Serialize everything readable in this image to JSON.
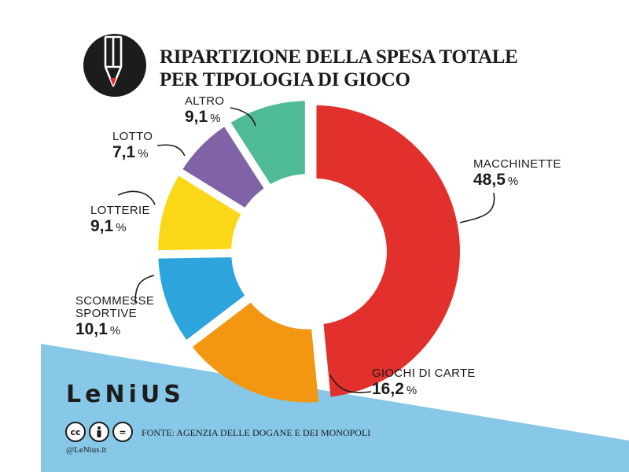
{
  "header": {
    "title_line1": "RIPARTIZIONE DELLA SPESA TOTALE",
    "title_line2": "PER TIPOLOGIA DI GIOCO"
  },
  "chart_data": {
    "type": "pie",
    "variant": "donut",
    "title": "RIPARTIZIONE DELLA SPESA TOTALE PER TIPOLOGIA DI GIOCO",
    "unit": "%",
    "slices": [
      {
        "label": "MACCHINETTE",
        "value": 48.5,
        "display": "48,5",
        "color": "#e2302d"
      },
      {
        "label": "GIOCHI DI CARTE",
        "value": 16.2,
        "display": "16,2",
        "color": "#f39712"
      },
      {
        "label": "SCOMMESSE SPORTIVE",
        "value": 10.1,
        "display": "10,1",
        "color": "#2ea4dd"
      },
      {
        "label": "LOTTERIE",
        "value": 9.1,
        "display": "9,1",
        "color": "#fad817"
      },
      {
        "label": "LOTTO",
        "value": 7.1,
        "display": "7,1",
        "color": "#7f63a6"
      },
      {
        "label": "ALTRO",
        "value": 9.1,
        "display": "9,1",
        "color": "#4fba97"
      }
    ]
  },
  "labels": {
    "macchinette": {
      "name": "MACCHINETTE",
      "value": "48,5",
      "unit": "%"
    },
    "giochi": {
      "name": "GIOCHI DI CARTE",
      "value": "16,2",
      "unit": "%"
    },
    "scommesse": {
      "name_line1": "SCOMMESSE",
      "name_line2": "SPORTIVE",
      "value": "10,1",
      "unit": "%"
    },
    "lotterie": {
      "name": "LOTTERIE",
      "value": "9,1",
      "unit": "%"
    },
    "lotto": {
      "name": "LOTTO",
      "value": "7,1",
      "unit": "%"
    },
    "altro": {
      "name": "ALTRO",
      "value": "9,1",
      "unit": "%"
    }
  },
  "footer": {
    "brand": "LeNiUS",
    "cc": [
      "cc",
      "by",
      "="
    ],
    "source": "FONTE: AGENZIA DELLE DOGANE E DEI MONOPOLI",
    "handle": "@LeNius.it"
  },
  "colors": {
    "footer_band": "#87c8e8",
    "ink": "#1c1c1c",
    "logo_red": "#e2302d"
  },
  "icons": {
    "logo": "pencil-icon"
  }
}
